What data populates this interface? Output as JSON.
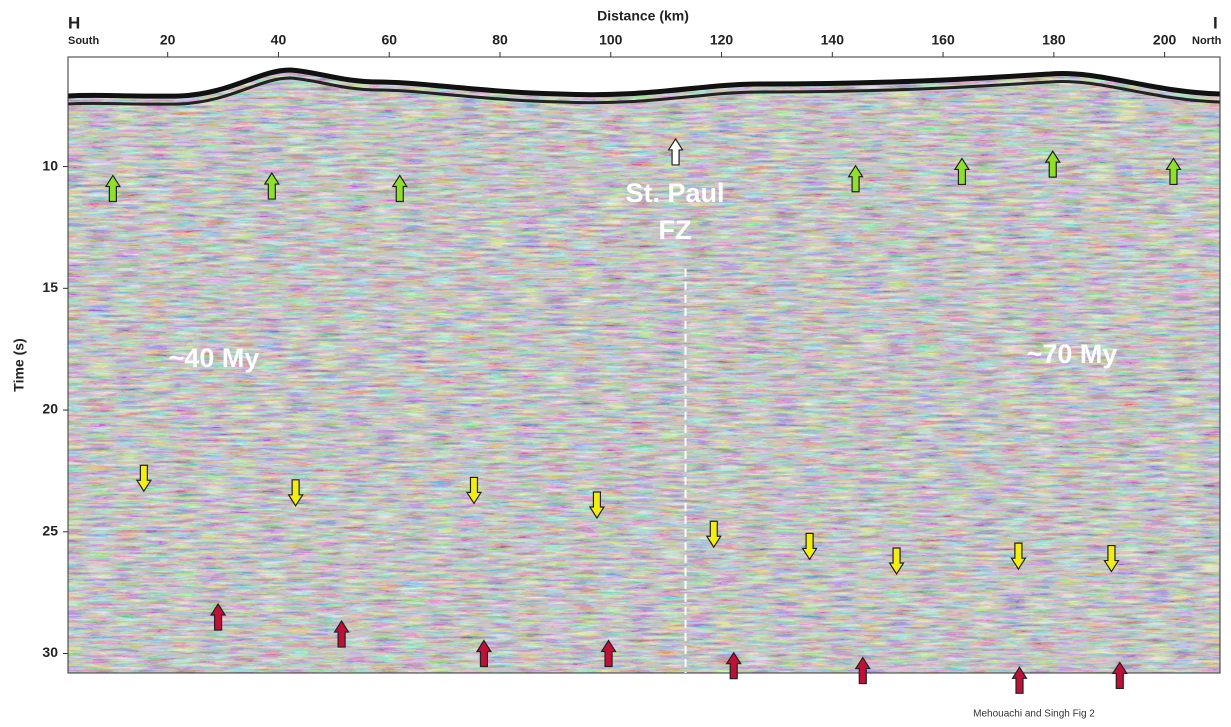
{
  "chart_data": {
    "type": "seismic-section",
    "x_label": "Distance (km)",
    "y_label": "Time (s)",
    "xlim": [
      2,
      210
    ],
    "ylim": [
      5.5,
      30.8
    ],
    "xticks": [
      20,
      40,
      60,
      80,
      100,
      120,
      140,
      160,
      180,
      200
    ],
    "yticks": [
      10,
      15,
      20,
      25,
      30
    ],
    "y_inverted": true,
    "left_end": {
      "letter": "H",
      "direction": "South"
    },
    "right_end": {
      "letter": "I",
      "direction": "North"
    },
    "annotations": {
      "fracture_zone": [
        "St. Paul",
        "FZ"
      ],
      "left_age": "~40 My",
      "right_age": "~70 My"
    },
    "fracture_zone_line": {
      "x": 113.5,
      "y_start": 14.2,
      "color": "#ffffff"
    },
    "credit": "Mehouachi and Singh Fig 2",
    "series": [
      {
        "color": "#8ee02a",
        "direction": "up",
        "x": [
          10.1,
          38.8,
          61.9,
          144.2,
          163.4,
          179.8,
          201.6
        ],
        "values": [
          10.9,
          10.8,
          10.9,
          10.5,
          10.2,
          9.9,
          10.2
        ]
      },
      {
        "color": "#ffffff",
        "direction": "up",
        "x": [
          111.7
        ],
        "values": [
          9.4
        ]
      },
      {
        "color": "#f2ee10",
        "direction": "down",
        "x": [
          15.7,
          43.1,
          75.3,
          97.5,
          118.6,
          135.9,
          151.6,
          173.6,
          190.4
        ],
        "values": [
          22.8,
          23.4,
          23.3,
          23.9,
          25.1,
          25.6,
          26.2,
          26.0,
          26.1
        ]
      },
      {
        "color": "#c0103a",
        "direction": "up",
        "x": [
          29.1,
          51.4,
          77.1,
          99.6,
          122.2,
          145.5,
          173.8,
          191.9
        ],
        "values": [
          28.5,
          29.2,
          30.0,
          30.0,
          30.5,
          30.7,
          31.1,
          30.9
        ]
      }
    ]
  }
}
